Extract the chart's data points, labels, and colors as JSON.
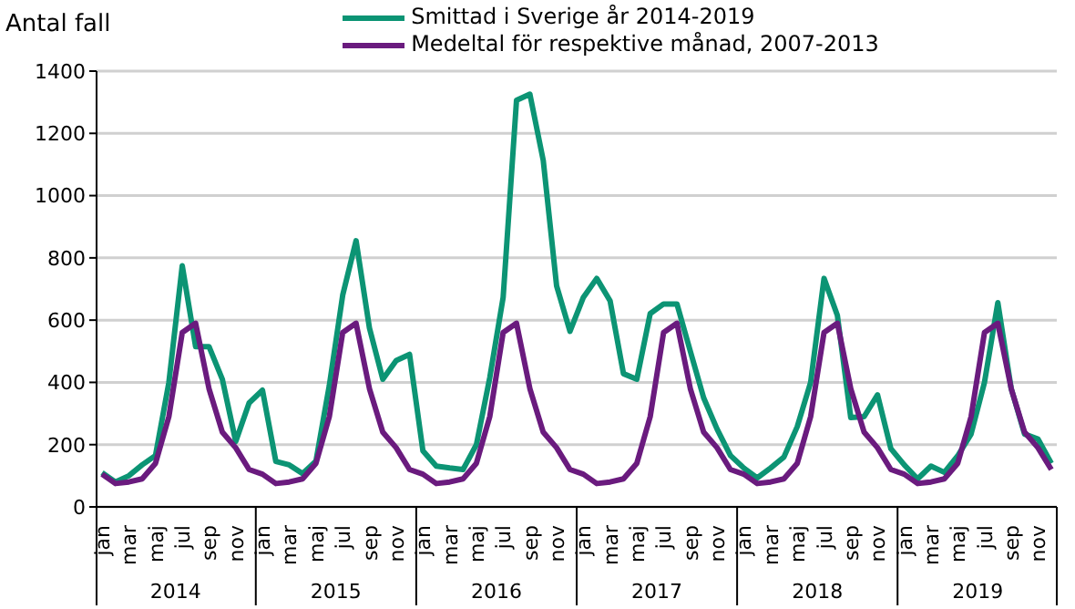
{
  "chart_data": {
    "type": "line",
    "ylabel": "Antal fall",
    "categories": [
      "jan",
      null,
      "mar",
      null,
      "maj",
      null,
      "jul",
      null,
      "sep",
      null,
      "nov",
      null,
      "jan",
      null,
      "mar",
      null,
      "maj",
      null,
      "jul",
      null,
      "sep",
      null,
      "nov",
      null,
      "jan",
      null,
      "mar",
      null,
      "maj",
      null,
      "jul",
      null,
      "sep",
      null,
      "nov",
      null,
      "jan",
      null,
      "mar",
      null,
      "maj",
      null,
      "jul",
      null,
      "sep",
      null,
      "nov",
      null,
      "jan",
      null,
      "mar",
      null,
      "maj",
      null,
      "jul",
      null,
      "sep",
      null,
      "nov",
      null,
      "jan",
      null,
      "mar",
      null,
      "maj",
      null,
      "jul",
      null,
      "sep",
      null,
      "nov",
      null
    ],
    "series": [
      {
        "name": "Smittad i Sverige år 2014-2019",
        "color": "#0c9474",
        "values": [
          110,
          80,
          100,
          135,
          165,
          400,
          775,
          515,
          515,
          410,
          210,
          334,
          375,
          146,
          135,
          107,
          147,
          390,
          680,
          855,
          575,
          410,
          470,
          490,
          180,
          131,
          125,
          120,
          200,
          415,
          673,
          1306,
          1326,
          1113,
          710,
          564,
          673,
          734,
          662,
          428,
          410,
          621,
          652,
          652,
          500,
          350,
          250,
          165,
          125,
          93,
          125,
          160,
          258,
          400,
          734,
          615,
          287,
          290,
          360,
          187,
          135,
          90,
          131,
          111,
          164,
          234,
          400,
          656,
          380,
          234,
          218,
          140
        ]
      },
      {
        "name": "Medeltal för respektive månad, 2007-2013",
        "color": "#6a1b7e",
        "values": [
          105,
          75,
          80,
          90,
          140,
          290,
          560,
          590,
          380,
          240,
          190,
          120,
          105,
          75,
          80,
          90,
          140,
          290,
          560,
          590,
          380,
          240,
          190,
          120,
          105,
          75,
          80,
          90,
          140,
          290,
          560,
          590,
          380,
          240,
          190,
          120,
          105,
          75,
          80,
          90,
          140,
          290,
          560,
          590,
          380,
          240,
          190,
          120,
          105,
          75,
          80,
          90,
          140,
          290,
          560,
          590,
          380,
          240,
          190,
          120,
          105,
          75,
          80,
          90,
          140,
          290,
          560,
          590,
          380,
          240,
          190,
          120
        ]
      }
    ],
    "annotations": [
      "2014",
      "2015",
      "2016",
      "2017",
      "2018",
      "2019"
    ],
    "ylim": [
      0,
      1400
    ],
    "yticks": [
      0,
      200,
      400,
      600,
      800,
      1000,
      1200,
      1400
    ],
    "grid": "y",
    "legend": "top",
    "marker": "none",
    "line_style": "solid"
  }
}
